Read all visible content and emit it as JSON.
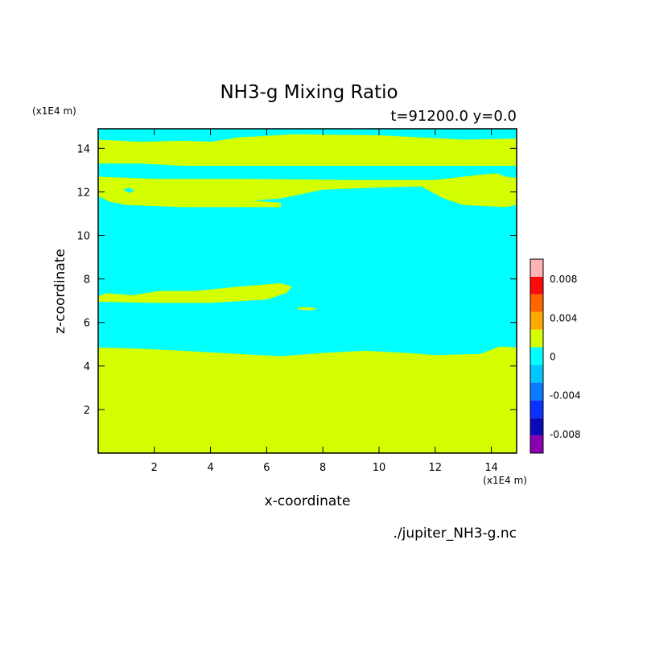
{
  "chart_data": {
    "type": "heatmap",
    "title": "NH3-g Mixing Ratio",
    "subtitle": "t=91200.0 y=0.0",
    "xlabel": "x-coordinate",
    "ylabel": "z-coordinate",
    "x_unit_label": "(x1E4 m)",
    "y_unit_label": "(x1E4 m)",
    "footer": "./jupiter_NH3-g.nc",
    "xlim": [
      0,
      14.9
    ],
    "ylim": [
      0,
      14.9
    ],
    "x_ticks": [
      2,
      4,
      6,
      8,
      10,
      12,
      14
    ],
    "y_ticks": [
      2,
      4,
      6,
      8,
      10,
      12,
      14
    ],
    "x_tick_labels": [
      "2",
      "4",
      "6",
      "8",
      "10",
      "12",
      "14"
    ],
    "y_tick_labels": [
      "2",
      "4",
      "6",
      "8",
      "10",
      "12",
      "14"
    ],
    "colorbar": {
      "levels": [
        -0.01,
        -0.008,
        -0.006,
        -0.004,
        -0.002,
        0,
        0.002,
        0.004,
        0.006,
        0.008,
        0.01
      ],
      "colors": [
        "#8a00b0",
        "#0a0ab8",
        "#0a32ff",
        "#0a7cff",
        "#00c8ff",
        "#00ffff",
        "#d4ff00",
        "#ffaa00",
        "#ff6600",
        "#ff0a0a",
        "#ffb4b4"
      ],
      "tick_values": [
        0.008,
        0.004,
        0,
        -0.004,
        -0.008
      ],
      "tick_labels": [
        "0.008",
        "0.004",
        "0",
        "-0.004",
        "-0.008"
      ]
    },
    "regions": [
      {
        "level": "0 to 0.002",
        "color": "#d4ff00",
        "description": "lower layer z<~4.8",
        "outline": [
          [
            0,
            0
          ],
          [
            14.9,
            0
          ],
          [
            14.9,
            4.85
          ],
          [
            14.3,
            4.9
          ],
          [
            14,
            4.75
          ],
          [
            13.6,
            4.55
          ],
          [
            12,
            4.5
          ],
          [
            11,
            4.6
          ],
          [
            9.5,
            4.7
          ],
          [
            8,
            4.6
          ],
          [
            6.5,
            4.45
          ],
          [
            5,
            4.55
          ],
          [
            3,
            4.7
          ],
          [
            1.5,
            4.8
          ],
          [
            0,
            4.85
          ]
        ]
      },
      {
        "level": "0 to 0.002",
        "color": "#d4ff00",
        "description": "tongue near z~7.2",
        "outline": [
          [
            0,
            6.95
          ],
          [
            2,
            6.9
          ],
          [
            4,
            6.9
          ],
          [
            6,
            7.05
          ],
          [
            6.7,
            7.35
          ],
          [
            6.9,
            7.65
          ],
          [
            6.5,
            7.8
          ],
          [
            5,
            7.65
          ],
          [
            3.5,
            7.45
          ],
          [
            2.2,
            7.45
          ],
          [
            1.2,
            7.25
          ],
          [
            0.3,
            7.35
          ],
          [
            0,
            7.2
          ]
        ]
      },
      {
        "level": "0 to 0.002",
        "color": "#d4ff00",
        "description": "small patch near x~7.5",
        "outline": [
          [
            7.1,
            6.6
          ],
          [
            7.6,
            6.55
          ],
          [
            7.8,
            6.65
          ],
          [
            7.5,
            6.7
          ],
          [
            7.1,
            6.7
          ]
        ]
      },
      {
        "level": "0 to 0.002",
        "color": "#d4ff00",
        "description": "band z~11.3-12.7",
        "outline": [
          [
            0,
            11.8
          ],
          [
            0.4,
            11.55
          ],
          [
            1,
            11.4
          ],
          [
            3,
            11.3
          ],
          [
            6.5,
            11.3
          ],
          [
            6.5,
            11.5
          ],
          [
            5.5,
            11.6
          ],
          [
            6.5,
            11.7
          ],
          [
            8,
            12.1
          ],
          [
            10,
            12.2
          ],
          [
            11.5,
            12.25
          ],
          [
            12.3,
            11.7
          ],
          [
            13,
            11.4
          ],
          [
            14.5,
            11.3
          ],
          [
            14.9,
            11.4
          ],
          [
            14.9,
            12.65
          ],
          [
            14.5,
            12.7
          ],
          [
            14.2,
            12.85
          ],
          [
            13.7,
            12.8
          ],
          [
            12,
            12.55
          ],
          [
            9,
            12.55
          ],
          [
            5,
            12.6
          ],
          [
            2,
            12.6
          ],
          [
            0,
            12.7
          ]
        ]
      },
      {
        "level": "0 to 0.002",
        "color": "#d4ff00",
        "description": "upper band z~13.2-14.6",
        "outline": [
          [
            0,
            13.3
          ],
          [
            1.5,
            13.3
          ],
          [
            3,
            13.2
          ],
          [
            6,
            13.2
          ],
          [
            10,
            13.2
          ],
          [
            14.9,
            13.2
          ],
          [
            14.9,
            14.45
          ],
          [
            13,
            14.4
          ],
          [
            10,
            14.6
          ],
          [
            7,
            14.65
          ],
          [
            5,
            14.5
          ],
          [
            4,
            14.3
          ],
          [
            3,
            14.35
          ],
          [
            1.5,
            14.3
          ],
          [
            0,
            14.4
          ]
        ]
      },
      {
        "level": "-0.002 to 0",
        "color": "#00ffff",
        "description": "holes in band z~12",
        "outline": [
          [
            0.9,
            12.1
          ],
          [
            1.1,
            11.95
          ],
          [
            1.3,
            12.05
          ],
          [
            1.1,
            12.2
          ]
        ]
      }
    ]
  }
}
